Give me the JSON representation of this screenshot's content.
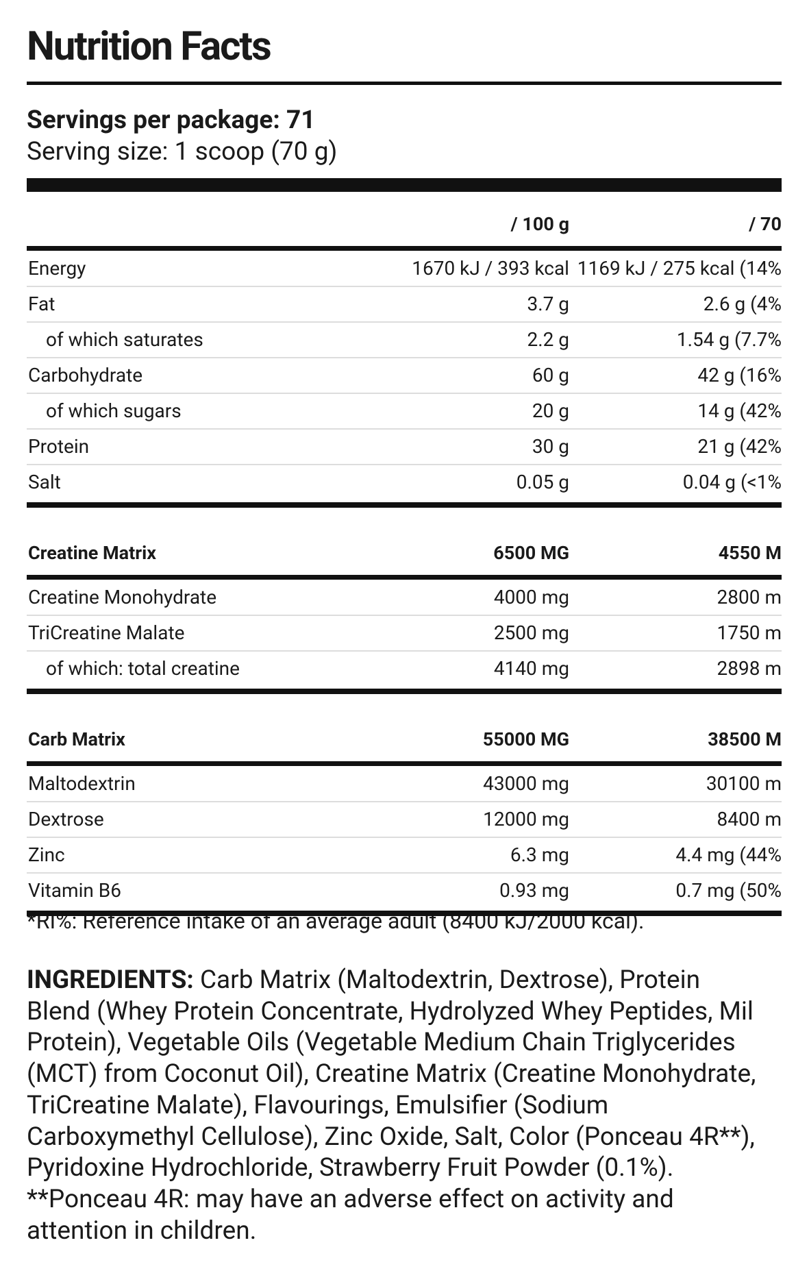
{
  "header": {
    "title": "Nutrition Facts",
    "servings": "Servings per package: 71",
    "serving_size": "Serving size: 1 scoop (70 g)"
  },
  "table": {
    "columns": [
      "/ 100 g",
      "/ 70"
    ],
    "sections": [
      {
        "rows": [
          {
            "name": "Energy",
            "values": [
              "1670 kJ / 393 kcal",
              "1169 kJ / 275 kcal (14%"
            ]
          },
          {
            "name": "Fat",
            "values": [
              "3.7 g",
              "2.6 g (4%"
            ]
          },
          {
            "name": "of which saturates",
            "indent": true,
            "values": [
              "2.2 g",
              "1.54 g (7.7%"
            ]
          },
          {
            "name": "Carbohydrate",
            "values": [
              "60 g",
              "42 g (16%"
            ]
          },
          {
            "name": "of which sugars",
            "indent": true,
            "values": [
              "20 g",
              "14 g (42%"
            ]
          },
          {
            "name": "Protein",
            "values": [
              "30 g",
              "21 g (42%"
            ]
          },
          {
            "name": "Salt",
            "values": [
              "0.05 g",
              "0.04 g (<1%"
            ]
          }
        ]
      },
      {
        "heading": {
          "name": "Creatine Matrix",
          "values": [
            "6500 MG",
            "4550 M"
          ]
        },
        "rows": [
          {
            "name": "Creatine Monohydrate",
            "values": [
              "4000 mg",
              "2800 m"
            ]
          },
          {
            "name": "TriCreatine Malate",
            "values": [
              "2500 mg",
              "1750 m"
            ]
          },
          {
            "name": "of which: total creatine",
            "indent": true,
            "values": [
              "4140 mg",
              "2898 m"
            ]
          }
        ]
      },
      {
        "heading": {
          "name": "Carb Matrix",
          "values": [
            "55000 MG",
            "38500 M"
          ]
        },
        "rows": [
          {
            "name": "Maltodextrin",
            "values": [
              "43000 mg",
              "30100 m"
            ]
          },
          {
            "name": "Dextrose",
            "values": [
              "12000 mg",
              "8400 m"
            ]
          },
          {
            "name": "Zinc",
            "values": [
              "6.3 mg",
              "4.4 mg (44%"
            ]
          },
          {
            "name": "Vitamin B6",
            "values": [
              "0.93 mg",
              "0.7 mg (50%"
            ]
          }
        ]
      }
    ]
  },
  "footnote": "*RI%: Reference intake of an average adult (8400 kJ/2000 kcal).",
  "ingredients": {
    "label": "INGREDIENTS:",
    "lines": [
      " Carb Matrix (Maltodextrin, Dextrose), Protein",
      "Blend (Whey Protein Concentrate, Hydrolyzed Whey Peptides, Mil",
      "Protein), Vegetable Oils (Vegetable Medium Chain Triglycerides",
      "(MCT) from Coconut Oil), Creatine Matrix (Creatine Monohydrate,",
      "TriCreatine Malate), Flavourings, Emulsifier (Sodium",
      "Carboxymethyl Cellulose), Zinc Oxide, Salt, Color (Ponceau 4R**),",
      "Pyridoxine Hydrochloride, Strawberry Fruit Powder (0.1%).",
      "**Ponceau 4R: may have an adverse effect on activity and",
      "attention in children."
    ]
  }
}
